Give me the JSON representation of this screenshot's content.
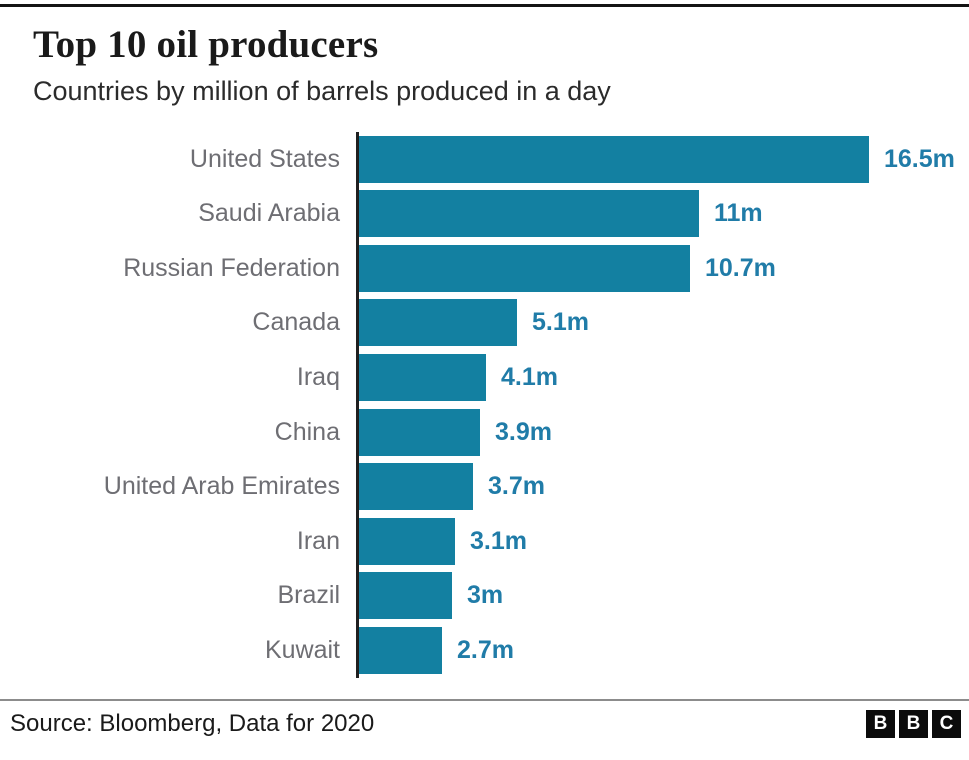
{
  "page": {
    "title": "Top 10 oil producers",
    "subtitle": "Countries by million of barrels produced in a day"
  },
  "chart_data": {
    "type": "bar",
    "orientation": "horizontal",
    "title": "Top 10 oil producers",
    "subtitle": "Countries by million of barrels produced in a day",
    "unit": "million barrels per day",
    "categories": [
      "United States",
      "Saudi Arabia",
      "Russian Federation",
      "Canada",
      "Iraq",
      "China",
      "United Arab Emirates",
      "Iran",
      "Brazil",
      "Kuwait"
    ],
    "values": [
      16.5,
      11,
      10.7,
      5.1,
      4.1,
      3.9,
      3.7,
      3.1,
      3,
      2.7
    ],
    "value_labels": [
      "16.5m",
      "11m",
      "10.7m",
      "5.1m",
      "4.1m",
      "3.9m",
      "3.7m",
      "3.1m",
      "3m",
      "2.7m"
    ],
    "xlim": [
      0,
      16.5
    ],
    "grid": false,
    "legend": false,
    "value_labels_position": "end-of-bar"
  },
  "footer": {
    "source": "Source: Bloomberg, Data for 2020",
    "logo_letters": [
      "B",
      "B",
      "C"
    ]
  },
  "colors": {
    "bar": "#1380a1",
    "value_text": "#207ca8",
    "label_text": "#6e6e73",
    "axis": "#1f1f1f",
    "title_text": "#1a1a1a"
  }
}
